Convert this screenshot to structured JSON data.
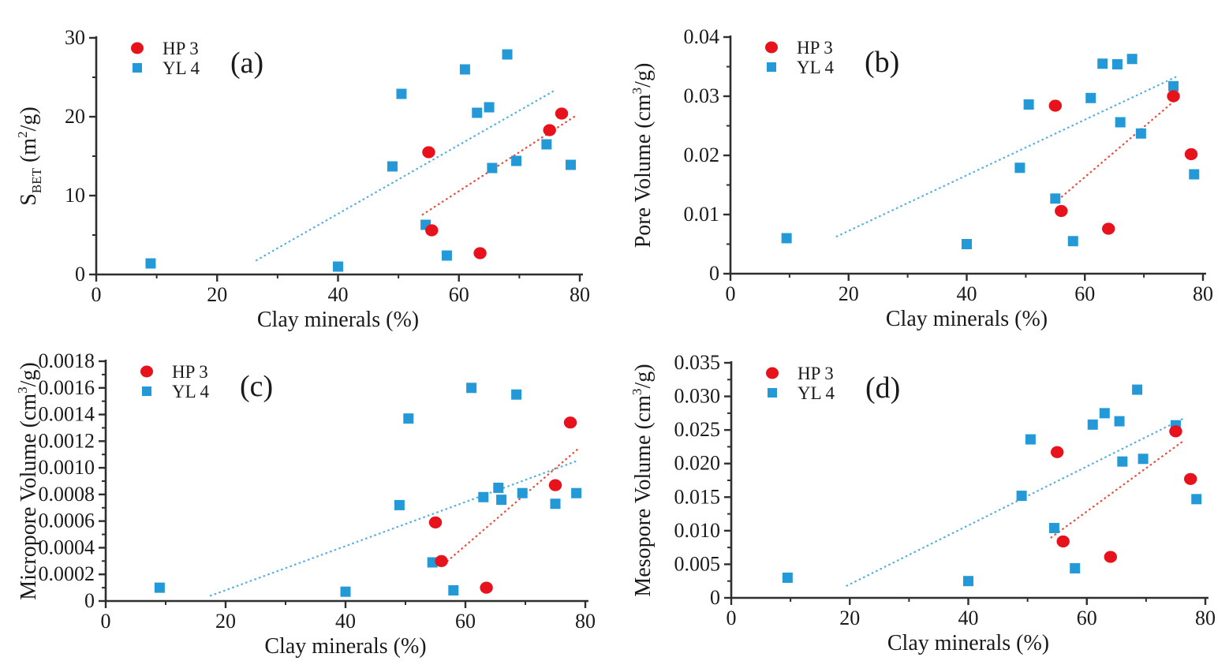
{
  "figure_title": "",
  "shared": {
    "x_axis_label": "Clay minerals (%)",
    "series_names": [
      "HP 3",
      "YL 4"
    ],
    "colors": {
      "hp3_marker": "#e8121c",
      "yl4_marker": "#2499d8",
      "hp3_trend": "#e6503e",
      "yl4_trend": "#58b0e2",
      "axis": "#2e2e2e",
      "text": "#1a1a1a"
    }
  },
  "chart_data": [
    {
      "type": "scatter",
      "panel_label": "(a)",
      "xlabel": "Clay minerals (%)",
      "ylabel_segments": [
        {
          "t": "n",
          "v": "S"
        },
        {
          "t": "sub",
          "v": "BET"
        },
        {
          "t": "n",
          "v": " (m"
        },
        {
          "t": "sup",
          "v": "2"
        },
        {
          "t": "n",
          "v": "/g)"
        }
      ],
      "xlim": [
        0,
        80
      ],
      "ylim": [
        0,
        30
      ],
      "x_tick_values": [
        0,
        20,
        40,
        60,
        80
      ],
      "x_tick_labels": [
        "0",
        "20",
        "40",
        "60",
        "80"
      ],
      "x_minor_ticks": [
        10,
        30,
        50,
        70
      ],
      "y_tick_values": [
        0,
        10,
        20,
        30
      ],
      "y_tick_labels": [
        "0",
        "10",
        "20",
        "30"
      ],
      "y_minor_ticks": [
        5,
        15,
        25
      ],
      "legend": [
        {
          "name": "HP 3",
          "marker": "circle",
          "color": "#e8121c"
        },
        {
          "name": "YL 4",
          "marker": "square",
          "color": "#2499d8"
        }
      ],
      "series": [
        {
          "name": "YL 4",
          "marker": "square",
          "color": "#2499d8",
          "points": [
            [
              9,
              1.4
            ],
            [
              40,
              1.0
            ],
            [
              49,
              13.7
            ],
            [
              50.5,
              22.9
            ],
            [
              54.5,
              6.3
            ],
            [
              58,
              2.4
            ],
            [
              61,
              26.0
            ],
            [
              63,
              20.5
            ],
            [
              65,
              21.2
            ],
            [
              65.5,
              13.5
            ],
            [
              68,
              27.9
            ],
            [
              69.5,
              14.4
            ],
            [
              74.5,
              16.5
            ],
            [
              78.5,
              13.9
            ]
          ]
        },
        {
          "name": "HP 3",
          "marker": "circle",
          "color": "#e8121c",
          "points": [
            [
              55,
              15.5
            ],
            [
              55.5,
              5.6
            ],
            [
              63.5,
              2.7
            ],
            [
              75,
              18.3
            ],
            [
              77,
              20.4
            ]
          ]
        }
      ],
      "trendlines": [
        {
          "series": "YL 4",
          "style": "dotted",
          "color": "#58b0e2",
          "from": [
            26.5,
            1.8
          ],
          "to": [
            76,
            23.4
          ]
        },
        {
          "series": "HP 3",
          "style": "dotted",
          "color": "#e6503e",
          "from": [
            54,
            7.6
          ],
          "to": [
            79.5,
            20.2
          ]
        }
      ]
    },
    {
      "type": "scatter",
      "panel_label": "(b)",
      "xlabel": "Clay minerals (%)",
      "ylabel_segments": [
        {
          "t": "n",
          "v": "Pore Volume (cm"
        },
        {
          "t": "sup",
          "v": "3"
        },
        {
          "t": "n",
          "v": "/g)"
        }
      ],
      "xlim": [
        0,
        80
      ],
      "ylim": [
        0,
        0.04
      ],
      "x_tick_values": [
        0,
        20,
        40,
        60,
        80
      ],
      "x_tick_labels": [
        "0",
        "20",
        "40",
        "60",
        "80"
      ],
      "x_minor_ticks": [
        10,
        30,
        50,
        70
      ],
      "y_tick_values": [
        0,
        0.01,
        0.02,
        0.03,
        0.04
      ],
      "y_tick_labels": [
        "0",
        "0.01",
        "0.02",
        "0.03",
        "0.04"
      ],
      "y_minor_ticks": [
        0.005,
        0.015,
        0.025,
        0.035
      ],
      "legend": [
        {
          "name": "HP 3",
          "marker": "circle",
          "color": "#e8121c"
        },
        {
          "name": "YL 4",
          "marker": "square",
          "color": "#2499d8"
        }
      ],
      "series": [
        {
          "name": "YL 4",
          "marker": "square",
          "color": "#2499d8",
          "points": [
            [
              9.5,
              0.006
            ],
            [
              40,
              0.005
            ],
            [
              49,
              0.0179
            ],
            [
              50.5,
              0.0286
            ],
            [
              55,
              0.0127
            ],
            [
              58,
              0.0055
            ],
            [
              61,
              0.0297
            ],
            [
              63,
              0.0355
            ],
            [
              65.5,
              0.0354
            ],
            [
              66,
              0.0256
            ],
            [
              68,
              0.0363
            ],
            [
              69.5,
              0.0237
            ],
            [
              75,
              0.0317
            ],
            [
              78.5,
              0.0168
            ]
          ]
        },
        {
          "name": "HP 3",
          "marker": "circle",
          "color": "#e8121c",
          "points": [
            [
              55,
              0.0284
            ],
            [
              56,
              0.0106
            ],
            [
              64,
              0.0076
            ],
            [
              75,
              0.03
            ],
            [
              78,
              0.0202
            ]
          ]
        }
      ],
      "trendlines": [
        {
          "series": "YL 4",
          "style": "dotted",
          "color": "#58b0e2",
          "from": [
            18,
            0.0063
          ],
          "to": [
            75.5,
            0.0333
          ]
        },
        {
          "series": "HP 3",
          "style": "dotted",
          "color": "#e6503e",
          "from": [
            55.5,
            0.0125
          ],
          "to": [
            75.5,
            0.0295
          ]
        }
      ]
    },
    {
      "type": "scatter",
      "panel_label": "(c)",
      "xlabel": "Clay minerals (%)",
      "ylabel_segments": [
        {
          "t": "n",
          "v": "Micropore Volume (cm"
        },
        {
          "t": "sup",
          "v": "3"
        },
        {
          "t": "n",
          "v": "/g)"
        }
      ],
      "xlim": [
        0,
        80
      ],
      "ylim": [
        0,
        0.0018
      ],
      "x_tick_values": [
        0,
        20,
        40,
        60,
        80
      ],
      "x_tick_labels": [
        "0",
        "20",
        "40",
        "60",
        "80"
      ],
      "x_minor_ticks": [
        10,
        30,
        50,
        70
      ],
      "y_tick_values": [
        0,
        0.0002,
        0.0004,
        0.0006,
        0.0008,
        0.001,
        0.0012,
        0.0014,
        0.0016,
        0.0018
      ],
      "y_tick_labels": [
        "0",
        "0.0002",
        "0.0004",
        "0.0006",
        "0.0008",
        "0.0010",
        "0.0012",
        "0.0014",
        "0.0016",
        "0.0018"
      ],
      "y_minor_ticks": [
        0.0001,
        0.0003,
        0.0005,
        0.0007,
        0.0009,
        0.0011,
        0.0013,
        0.0015,
        0.0017
      ],
      "legend": [
        {
          "name": "HP 3",
          "marker": "circle",
          "color": "#e8121c"
        },
        {
          "name": "YL 4",
          "marker": "square",
          "color": "#2499d8"
        }
      ],
      "series": [
        {
          "name": "YL 4",
          "marker": "square",
          "color": "#2499d8",
          "points": [
            [
              9,
              0.0001
            ],
            [
              40,
              7e-05
            ],
            [
              49,
              0.00072
            ],
            [
              50.5,
              0.00137
            ],
            [
              54.5,
              0.00029
            ],
            [
              58,
              8e-05
            ],
            [
              61,
              0.0016
            ],
            [
              63,
              0.00078
            ],
            [
              65.5,
              0.00085
            ],
            [
              66,
              0.00076
            ],
            [
              68.5,
              0.00155
            ],
            [
              69.5,
              0.00081
            ],
            [
              75,
              0.00073
            ],
            [
              78.5,
              0.00081
            ]
          ]
        },
        {
          "name": "HP 3",
          "marker": "circle",
          "color": "#e8121c",
          "points": [
            [
              55,
              0.00059
            ],
            [
              56,
              0.0003
            ],
            [
              63.5,
              0.0001
            ],
            [
              75,
              0.00087
            ],
            [
              77.5,
              0.00134
            ]
          ]
        }
      ],
      "trendlines": [
        {
          "series": "YL 4",
          "style": "dotted",
          "color": "#58b0e2",
          "from": [
            17.5,
            4e-05
          ],
          "to": [
            78.5,
            0.00105
          ]
        },
        {
          "series": "HP 3",
          "style": "dotted",
          "color": "#e6503e",
          "from": [
            57,
            0.0003
          ],
          "to": [
            79,
            0.00115
          ]
        }
      ]
    },
    {
      "type": "scatter",
      "panel_label": "(d)",
      "xlabel": "Clay minerals (%)",
      "ylabel_segments": [
        {
          "t": "n",
          "v": "Mesopore Volume (cm"
        },
        {
          "t": "sup",
          "v": "3"
        },
        {
          "t": "n",
          "v": "/g)"
        }
      ],
      "xlim": [
        0,
        80
      ],
      "ylim": [
        0,
        0.035
      ],
      "x_tick_values": [
        0,
        20,
        40,
        60,
        80
      ],
      "x_tick_labels": [
        "0",
        "20",
        "40",
        "60",
        "80"
      ],
      "x_minor_ticks": [
        10,
        30,
        50,
        70
      ],
      "y_tick_values": [
        0,
        0.005,
        0.01,
        0.015,
        0.02,
        0.025,
        0.03,
        0.035
      ],
      "y_tick_labels": [
        "0",
        "0.005",
        "0.010",
        "0.015",
        "0.020",
        "0.025",
        "0.030",
        "0.035"
      ],
      "y_minor_ticks": [
        0.0025,
        0.0075,
        0.0125,
        0.0175,
        0.0225,
        0.0275,
        0.0325
      ],
      "legend": [
        {
          "name": "HP 3",
          "marker": "circle",
          "color": "#e8121c"
        },
        {
          "name": "YL 4",
          "marker": "square",
          "color": "#2499d8"
        }
      ],
      "series": [
        {
          "name": "YL 4",
          "marker": "square",
          "color": "#2499d8",
          "points": [
            [
              9.5,
              0.003
            ],
            [
              40,
              0.0025
            ],
            [
              49,
              0.0152
            ],
            [
              50.5,
              0.0236
            ],
            [
              54.5,
              0.0104
            ],
            [
              58,
              0.0044
            ],
            [
              61,
              0.0258
            ],
            [
              63,
              0.0275
            ],
            [
              65.5,
              0.0263
            ],
            [
              66,
              0.0203
            ],
            [
              68.5,
              0.031
            ],
            [
              69.5,
              0.0207
            ],
            [
              75,
              0.0257
            ],
            [
              78.5,
              0.0147
            ]
          ]
        },
        {
          "name": "HP 3",
          "marker": "circle",
          "color": "#e8121c",
          "points": [
            [
              55,
              0.0217
            ],
            [
              56,
              0.0084
            ],
            [
              64,
              0.0061
            ],
            [
              75,
              0.0248
            ],
            [
              77.5,
              0.0177
            ]
          ]
        }
      ],
      "trendlines": [
        {
          "series": "YL 4",
          "style": "dotted",
          "color": "#58b0e2",
          "from": [
            19.5,
            0.0018
          ],
          "to": [
            76.5,
            0.0268
          ]
        },
        {
          "series": "HP 3",
          "style": "dotted",
          "color": "#e6503e",
          "from": [
            54,
            0.009
          ],
          "to": [
            76.5,
            0.0235
          ]
        }
      ]
    }
  ]
}
